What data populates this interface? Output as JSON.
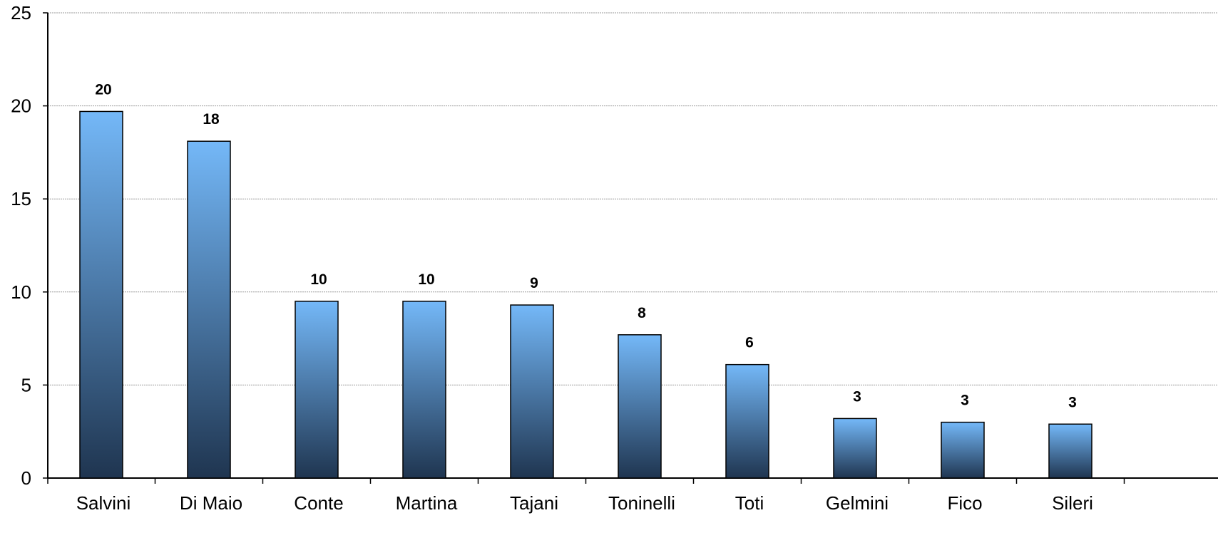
{
  "chart_data": {
    "type": "bar",
    "categories": [
      "Salvini",
      "Di Maio",
      "Conte",
      "Martina",
      "Tajani",
      "Toninelli",
      "Toti",
      "Gelmini",
      "Fico",
      "Sileri"
    ],
    "values": [
      19.7,
      18.1,
      9.5,
      9.5,
      9.3,
      7.7,
      6.1,
      3.2,
      3.0,
      2.9
    ],
    "data_labels": [
      "20",
      "18",
      "10",
      "10",
      "9",
      "8",
      "6",
      "3",
      "3",
      "3"
    ],
    "ylim": [
      0,
      25
    ],
    "yticks": [
      "0",
      "5",
      "10",
      "15",
      "20",
      "25"
    ],
    "grid": true,
    "title": "",
    "xlabel": "",
    "ylabel": "",
    "colors": {
      "bar_top": "#74b8f8",
      "bar_bottom": "#1f3550",
      "bar_stroke": "#000000",
      "grid": "#9a9a9a",
      "axis": "#000000"
    }
  }
}
